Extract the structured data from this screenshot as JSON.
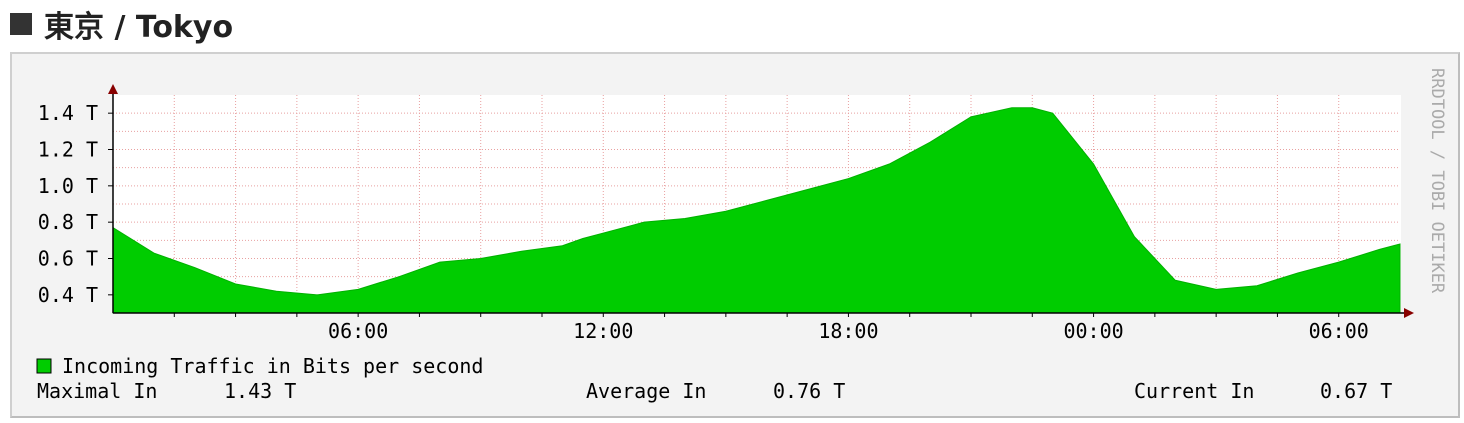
{
  "page": {
    "title": "東京 / Tokyo"
  },
  "chart_data": {
    "type": "area",
    "x_tick_labels": [
      "06:00",
      "12:00",
      "18:00",
      "00:00",
      "06:00"
    ],
    "y_tick_labels": [
      "0.4 T",
      "0.6 T",
      "0.8 T",
      "1.0 T",
      "1.2 T",
      "1.4 T"
    ],
    "ylim": [
      0.3,
      1.5
    ],
    "x_range_hours": [
      0,
      31.5
    ],
    "grid": true,
    "watermark": "RRDTOOL / TOBI OETIKER",
    "colors": {
      "area": "#00cc00",
      "grid": "#e8a0a0",
      "axis": "#880000",
      "background": "#ffffff"
    },
    "legend": "Incoming Traffic in Bits per second",
    "series": [
      {
        "name": "Incoming Traffic in Bits per second",
        "unit": "T",
        "x_hours": [
          0,
          1,
          2,
          3,
          4,
          5,
          6,
          7,
          8,
          9,
          10,
          11,
          11.5,
          12,
          13,
          14,
          15,
          16,
          17,
          18,
          19,
          20,
          21,
          22,
          22.5,
          23,
          24,
          25,
          26,
          27,
          28,
          29,
          30,
          31,
          31.5
        ],
        "values": [
          0.77,
          0.63,
          0.55,
          0.46,
          0.42,
          0.4,
          0.43,
          0.5,
          0.58,
          0.6,
          0.64,
          0.67,
          0.71,
          0.74,
          0.8,
          0.82,
          0.86,
          0.92,
          0.98,
          1.04,
          1.12,
          1.24,
          1.38,
          1.43,
          1.43,
          1.4,
          1.12,
          0.72,
          0.48,
          0.43,
          0.45,
          0.52,
          0.58,
          0.65,
          0.68
        ]
      }
    ]
  },
  "stats": {
    "max_label": "Maximal In",
    "max_value": "1.43 T",
    "avg_label": "Average In",
    "avg_value": "0.76 T",
    "cur_label": "Current In",
    "cur_value": "0.67 T"
  }
}
